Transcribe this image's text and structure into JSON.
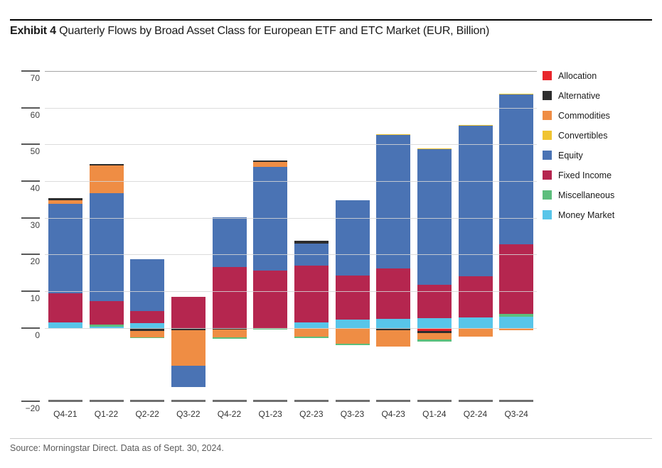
{
  "page": {
    "exhibit_label": "Exhibit 4",
    "title_rest": " Quarterly Flows by Broad Asset Class for European ETF and ETC Market (EUR, Billion)",
    "source_note": "Source: Morningstar Direct. Data as of Sept. 30, 2024."
  },
  "chart_data": {
    "type": "bar",
    "stacked": true,
    "title": "Quarterly Flows by Broad Asset Class for European ETF and ETC Market (EUR, Billion)",
    "xlabel": "",
    "ylabel": "",
    "ylim": [
      -20,
      70
    ],
    "grid": "horizontal",
    "legend_position": "right",
    "categories": [
      "Q4-21",
      "Q1-22",
      "Q2-22",
      "Q3-22",
      "Q4-22",
      "Q1-23",
      "Q2-23",
      "Q3-23",
      "Q4-23",
      "Q1-24",
      "Q2-24",
      "Q3-24"
    ],
    "series": [
      {
        "name": "Allocation",
        "color": "#e8262c",
        "values": [
          0,
          0,
          0,
          0,
          0,
          0,
          0,
          0,
          0,
          -0.9,
          0,
          0
        ]
      },
      {
        "name": "Alternative",
        "color": "#2d2d2d",
        "values": [
          0.5,
          0.5,
          -0.9,
          -0.6,
          -0.4,
          0.5,
          0.8,
          0,
          -0.7,
          -0.6,
          0,
          0
        ]
      },
      {
        "name": "Commodities",
        "color": "#ef8d44",
        "values": [
          1.0,
          7.5,
          -1.7,
          -9.7,
          -2.1,
          1.4,
          -2.3,
          -4.3,
          -4.4,
          -1.6,
          -2.4,
          -0.6
        ]
      },
      {
        "name": "Convertibles",
        "color": "#f0c431",
        "values": [
          0,
          0,
          0,
          0,
          0,
          0,
          0,
          0,
          0.2,
          0.2,
          0.2,
          0.2
        ]
      },
      {
        "name": "Equity",
        "color": "#4a73b4",
        "values": [
          24.4,
          29.5,
          14.2,
          -5.8,
          13.6,
          28.2,
          6.0,
          20.6,
          36.4,
          36.9,
          41.0,
          40.9
        ]
      },
      {
        "name": "Fixed Income",
        "color": "#b5264f",
        "values": [
          7.9,
          6.3,
          3.2,
          8.5,
          16.6,
          15.6,
          15.5,
          11.9,
          13.7,
          9.2,
          11.3,
          18.9
        ]
      },
      {
        "name": "Miscellaneous",
        "color": "#5dbe7c",
        "values": [
          0,
          0.5,
          -0.2,
          0,
          -0.5,
          -0.5,
          -0.4,
          -0.4,
          0,
          -0.6,
          0,
          0.9
        ]
      },
      {
        "name": "Money Market",
        "color": "#58c5e9",
        "values": [
          1.5,
          0.4,
          1.3,
          0,
          0,
          0,
          1.4,
          2.3,
          2.4,
          2.6,
          2.8,
          3.0
        ]
      }
    ],
    "y_ticks": [
      {
        "label": "70",
        "value": 70
      },
      {
        "label": "60",
        "value": 60
      },
      {
        "label": "50",
        "value": 50
      },
      {
        "label": "40",
        "value": 40
      },
      {
        "label": "30",
        "value": 30
      },
      {
        "label": "20",
        "value": 20
      },
      {
        "label": "10",
        "value": 10
      },
      {
        "label": "0",
        "value": 0
      },
      {
        "label": "−20",
        "value": -20
      }
    ]
  }
}
